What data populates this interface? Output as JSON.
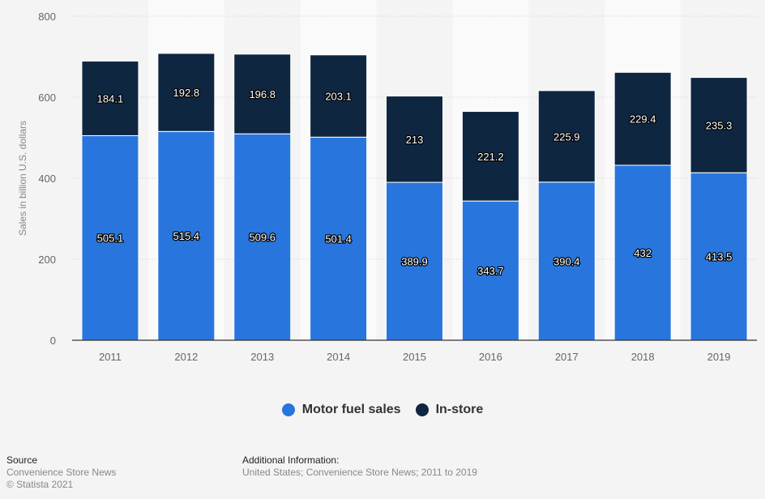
{
  "chart_data": {
    "type": "bar",
    "stacked": true,
    "title": "",
    "xlabel": "",
    "ylabel": "Sales in billion U.S. dollars",
    "ylim": [
      0,
      800
    ],
    "yticks": [
      0,
      200,
      400,
      600,
      800
    ],
    "grid": true,
    "legend_position": "bottom-center",
    "categories": [
      "2011",
      "2012",
      "2013",
      "2014",
      "2015",
      "2016",
      "2017",
      "2018",
      "2019"
    ],
    "series": [
      {
        "name": "Motor fuel sales",
        "color": "#2876dd",
        "values": [
          505.1,
          515.4,
          509.6,
          501.4,
          389.9,
          343.7,
          390.4,
          432,
          413.5
        ]
      },
      {
        "name": "In-store",
        "color": "#0f2641",
        "values": [
          184.1,
          192.8,
          196.8,
          203.1,
          213,
          221.2,
          225.9,
          229.4,
          235.3
        ]
      }
    ]
  },
  "legend": {
    "items": [
      {
        "label": "Motor fuel sales",
        "color": "#2876dd"
      },
      {
        "label": "In-store",
        "color": "#0f2641"
      }
    ]
  },
  "footer": {
    "source_heading": "Source",
    "source_text": "Convenience Store News",
    "copyright": "© Statista 2021",
    "additional_heading": "Additional Information:",
    "additional_text": "United States; Convenience Store News; 2011 to 2019"
  }
}
